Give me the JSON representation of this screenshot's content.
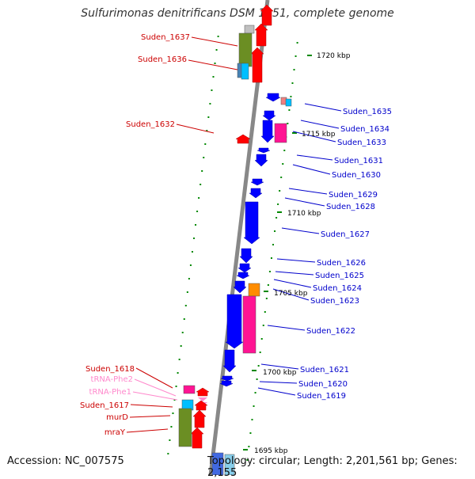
{
  "title": "Sulfurimonas denitrificans DSM 1251, complete genome",
  "accession_text": "Accession: NC_007575",
  "topology_text": "Topology: circular; Length: 2,201,561 bp; Genes: 2,155",
  "colors": {
    "backbone": "#888888",
    "plus_strand": "#ff0000",
    "minus_strand": "#0000ff",
    "plus_label": "#cc0000",
    "minus_label": "#0000cc",
    "trna": "#ff88cc",
    "cog_green": "#6b8e23",
    "cog_magenta": "#ff1493",
    "cog_cyan": "#00bfff",
    "cog_orange": "#ff8c00",
    "tick": "#008800"
  },
  "scale_labels": [
    "1720 kbp",
    "1715 kbp",
    "1710 kbp",
    "1705 kbp",
    "1700 kbp",
    "1695 kbp"
  ],
  "left_genes": [
    {
      "label": "Suden_1637"
    },
    {
      "label": "Suden_1636"
    },
    {
      "label": "Suden_1632"
    },
    {
      "label": "Suden_1618"
    },
    {
      "label": "tRNA-Phe2"
    },
    {
      "label": "tRNA-Phe1"
    },
    {
      "label": "Suden_1617"
    },
    {
      "label": "murD"
    },
    {
      "label": "mraY"
    }
  ],
  "right_genes": [
    {
      "label": "Suden_1635"
    },
    {
      "label": "Suden_1634"
    },
    {
      "label": "Suden_1633"
    },
    {
      "label": "Suden_1631"
    },
    {
      "label": "Suden_1630"
    },
    {
      "label": "Suden_1629"
    },
    {
      "label": "Suden_1628"
    },
    {
      "label": "Suden_1627"
    },
    {
      "label": "Suden_1626"
    },
    {
      "label": "Suden_1625"
    },
    {
      "label": "Suden_1624"
    },
    {
      "label": "Suden_1623"
    },
    {
      "label": "Suden_1622"
    },
    {
      "label": "Suden_1621"
    },
    {
      "label": "Suden_1620"
    },
    {
      "label": "Suden_1619"
    }
  ]
}
